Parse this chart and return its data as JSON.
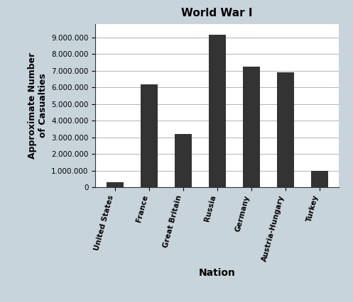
{
  "title": "World War I",
  "xlabel": "Nation",
  "ylabel": "Approximate Number\nof Casualties",
  "categories": [
    "United States",
    "France",
    "Great Britain",
    "Russia",
    "Germany",
    "Austria-Hungary",
    "Turkey"
  ],
  "values": [
    320000,
    6200000,
    3200000,
    9150000,
    7250000,
    6900000,
    975000
  ],
  "bar_color": "#333333",
  "ylim": [
    0,
    9800000
  ],
  "yticks": [
    0,
    1000000,
    2000000,
    3000000,
    4000000,
    5000000,
    6000000,
    7000000,
    8000000,
    9000000
  ],
  "background_color": "#c8d4dc",
  "plot_background": "#ffffff",
  "title_fontsize": 11,
  "xlabel_fontsize": 10,
  "ylabel_fontsize": 9,
  "tick_fontsize": 7.5,
  "xtick_rotation": 75
}
